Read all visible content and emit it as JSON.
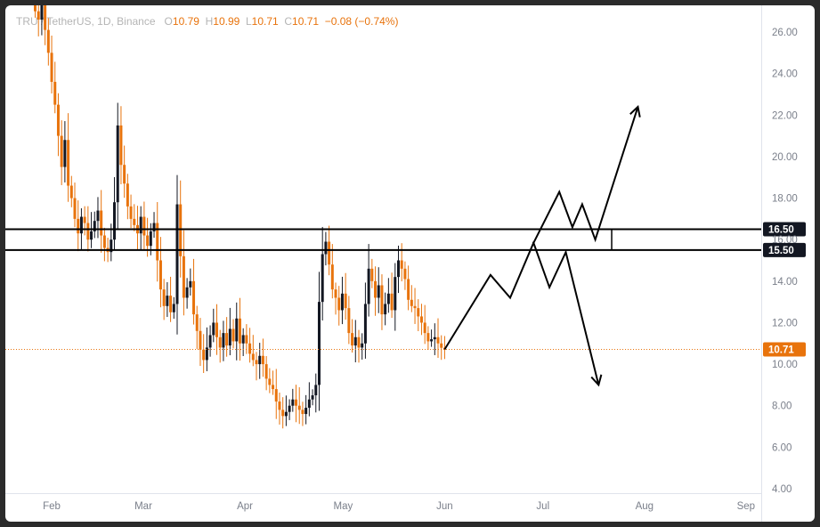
{
  "header": {
    "symbol": "TRU",
    "quote": "/ TetherUS, 1D, Binance",
    "o_label": "O",
    "o_value": "10.79",
    "h_label": "H",
    "h_value": "10.99",
    "l_label": "L",
    "l_value": "10.71",
    "c_label": "C",
    "c_value": "10.71",
    "change": "−0.08 (−0.74%)"
  },
  "colors": {
    "up": "#131722",
    "down": "#e8730c",
    "last_price": "#e8730c",
    "level_tag": "#131722"
  },
  "chart_data": {
    "type": "candlestick",
    "x_axis": {
      "labels": [
        "Feb",
        "Mar",
        "Apr",
        "May",
        "Jun",
        "Jul",
        "Aug",
        "Sep"
      ],
      "start": "2023-01-26",
      "end": "2023-09-21"
    },
    "y_axis": {
      "min": 4,
      "max": 27,
      "ticks": [
        "26.00",
        "24.00",
        "22.00",
        "20.00",
        "18.00",
        "16.00",
        "14.00",
        "12.00",
        "10.00",
        "8.00",
        "6.00",
        "4.00"
      ]
    },
    "levels": [
      {
        "value": 16.5,
        "label": "16.50"
      },
      {
        "value": 15.5,
        "label": "15.50"
      }
    ],
    "last_price": {
      "value": 10.71,
      "label": "10.71"
    },
    "closes": [
      27.0,
      26.6,
      27.3,
      26.1,
      25.0,
      23.6,
      22.5,
      21.0,
      19.5,
      20.8,
      18.6,
      18.0,
      17.0,
      16.3,
      17.1,
      16.8,
      16.0,
      16.4,
      16.9,
      17.4,
      16.2,
      15.6,
      15.4,
      16.0,
      17.8,
      21.5,
      19.6,
      18.7,
      17.6,
      17.0,
      16.7,
      16.3,
      17.1,
      16.2,
      15.7,
      16.4,
      16.8,
      15.0,
      13.6,
      12.8,
      13.3,
      12.5,
      12.9,
      17.7,
      15.2,
      13.2,
      13.7,
      14.0,
      12.4,
      11.6,
      10.7,
      10.2,
      10.8,
      11.4,
      12.0,
      11.3,
      10.8,
      11.5,
      10.9,
      11.7,
      11.1,
      12.2,
      11.0,
      11.4,
      11.0,
      10.5,
      10.2,
      10.0,
      10.4,
      10.0,
      9.3,
      9.0,
      8.8,
      8.2,
      7.8,
      7.5,
      7.7,
      8.0,
      8.3,
      8.0,
      7.8,
      7.6,
      7.9,
      8.3,
      8.5,
      9.0,
      13.0,
      15.3,
      15.9,
      14.8,
      13.6,
      13.2,
      12.6,
      13.4,
      12.7,
      11.5,
      10.9,
      11.3,
      10.8,
      11.0,
      12.9,
      14.6,
      14.0,
      13.2,
      13.8,
      12.4,
      12.9,
      13.4,
      12.6,
      14.2,
      15.0,
      14.6,
      14.1,
      13.1,
      12.8,
      12.7,
      12.3,
      12.0,
      11.5,
      11.1,
      11.2,
      11.3,
      11.0,
      10.79,
      10.71
    ],
    "projection_up": [
      [
        10.71,
        "2023-06-01"
      ],
      [
        14.3,
        "2023-06-15"
      ],
      [
        13.2,
        "2023-06-21"
      ],
      [
        15.8,
        "2023-06-28"
      ],
      [
        18.3,
        "2023-07-06"
      ],
      [
        16.6,
        "2023-07-10"
      ],
      [
        17.7,
        "2023-07-13"
      ],
      [
        16.0,
        "2023-07-17"
      ],
      [
        22.4,
        "2023-07-30"
      ],
      [
        21.9,
        "2023-08-01"
      ]
    ],
    "projection_down": [
      [
        15.9,
        "2023-06-28"
      ],
      [
        13.7,
        "2023-07-03"
      ],
      [
        15.4,
        "2023-07-08"
      ],
      [
        9.0,
        "2023-07-18"
      ]
    ],
    "range_marker": {
      "date": "2023-07-22",
      "top": 16.5,
      "bottom": 15.5
    }
  }
}
